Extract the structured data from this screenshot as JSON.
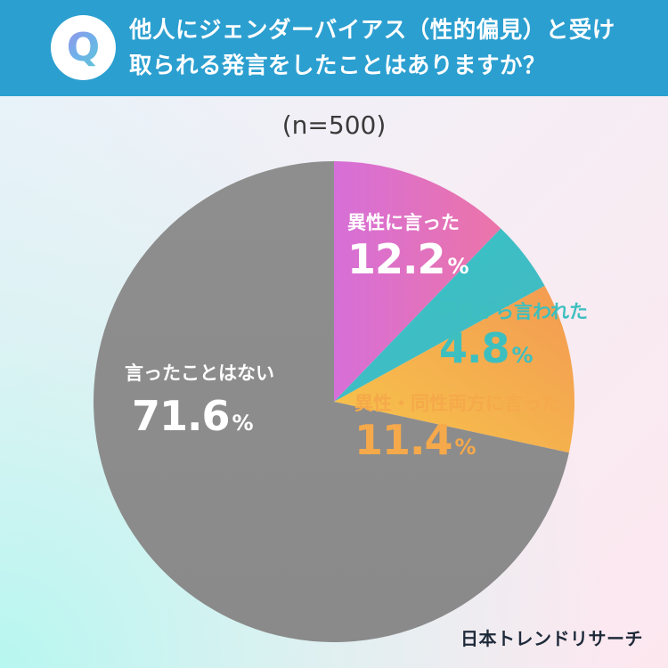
{
  "header": {
    "badge_letter": "Q",
    "question_line1": "他人にジェンダーバイアス（性的偏見）と受け",
    "question_line2": "取られる発言をしたことはありますか？"
  },
  "sample_label": "(n=500)",
  "brand": "日本トレンドリサーチ",
  "chart_data": {
    "type": "pie",
    "title": "",
    "start_angle_deg": 0,
    "direction": "clockwise",
    "slices": [
      {
        "label": "異性に言った",
        "value": 12.2,
        "display": "12.2",
        "unit": "%",
        "color": "#e070b8"
      },
      {
        "label": "同性から言われた",
        "value": 4.8,
        "display": "4.8",
        "unit": "%",
        "color": "#3dbfbf"
      },
      {
        "label": "異性・同性両方に言った",
        "value": 11.4,
        "display": "11.4",
        "unit": "%",
        "color": "#f5a94a"
      },
      {
        "label": "言ったことはない",
        "value": 71.6,
        "display": "71.6",
        "unit": "%",
        "color": "#8c8c8c"
      }
    ],
    "label_colors": [
      "#ffffff",
      "#3dbfbf",
      "#f5a94a",
      "#ffffff"
    ]
  }
}
